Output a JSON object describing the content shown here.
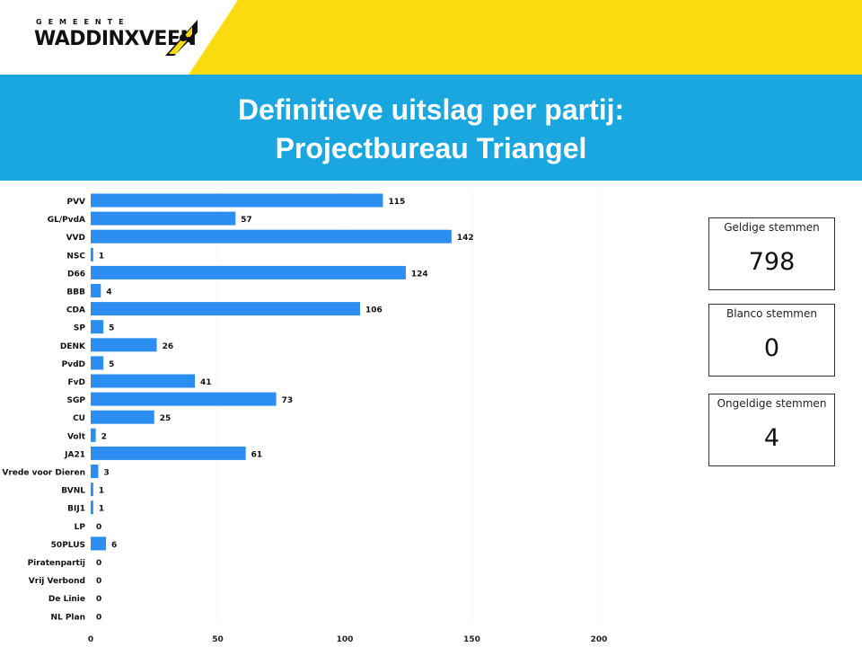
{
  "header": {
    "logo_top": "GEMEENTE",
    "logo_main": "WADDINXVEEN",
    "title_line1": "Definitieve uitslag per partij:",
    "title_line2": "Projectbureau Triangel"
  },
  "colors": {
    "yellow": "#f9dc0f",
    "blue_band": "#1aa7e0",
    "bar": "#2b8ef0"
  },
  "kpis": [
    {
      "label": "Geldige stemmen",
      "value": "798"
    },
    {
      "label": "Blanco stemmen",
      "value": "0"
    },
    {
      "label": "Ongeldige stemmen",
      "value": "4"
    }
  ],
  "chart_data": {
    "type": "bar",
    "orientation": "horizontal",
    "categories": [
      "PVV",
      "GL/PvdA",
      "VVD",
      "NSC",
      "D66",
      "BBB",
      "CDA",
      "SP",
      "DENK",
      "PvdD",
      "FvD",
      "SGP",
      "CU",
      "Volt",
      "JA21",
      "Vrede voor Dieren",
      "BVNL",
      "BIJ1",
      "LP",
      "50PLUS",
      "Piratenpartij",
      "Vrij Verbond",
      "De Linie",
      "NL Plan"
    ],
    "values": [
      115,
      57,
      142,
      1,
      124,
      4,
      106,
      5,
      26,
      5,
      41,
      73,
      25,
      2,
      61,
      3,
      1,
      1,
      0,
      6,
      0,
      0,
      0,
      0
    ],
    "xlim": [
      0,
      300
    ],
    "xticks": [
      "0",
      "50",
      "100",
      "150",
      "200",
      "250",
      "300"
    ],
    "grid": true,
    "data_labels": true
  }
}
